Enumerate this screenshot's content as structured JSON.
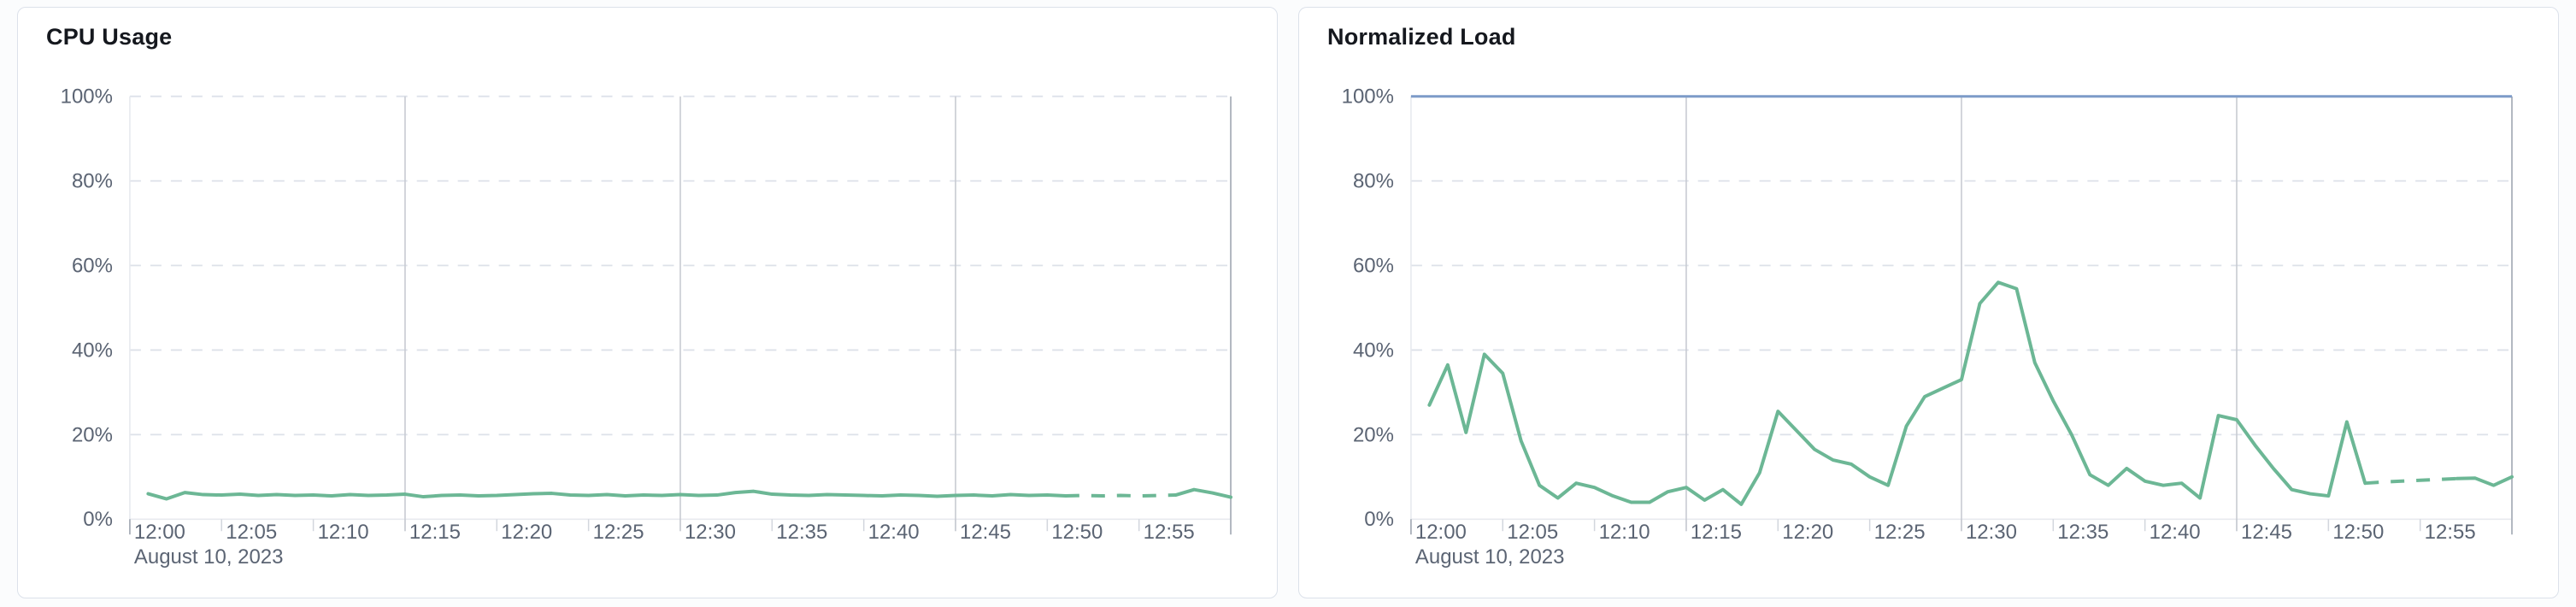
{
  "theme": {
    "page_background": "#fbfcfd",
    "card_background": "#ffffff",
    "card_border": "#dce1ea",
    "title_color": "#15181e",
    "axis_label_color": "#5b6473",
    "h_gridline_dashed_color": "#dde1e9",
    "baseline_color": "#e8eaef",
    "left_edge_line_color": "#e6e9ee",
    "minor_tick_color": "#d2d6dd",
    "major_gridline_color": "#c8cbd2",
    "right_edge_line_color": "#b2b7c0",
    "series_green": "#6cb795",
    "limit_blue": "#7d9bc8"
  },
  "chart_data": [
    {
      "type": "line",
      "title": "CPU Usage",
      "x_axis": {
        "date_label": "August 10, 2023",
        "tick_labels": [
          "12:00",
          "12:05",
          "12:10",
          "12:15",
          "12:20",
          "12:25",
          "12:30",
          "12:35",
          "12:40",
          "12:45",
          "12:50",
          "12:55"
        ],
        "range_start": "12:00",
        "range_end": "13:00",
        "major_gridline_times": [
          "12:15",
          "12:30",
          "12:45"
        ],
        "right_edge_time": "13:00"
      },
      "y_axis": {
        "tick_labels": [
          "0%",
          "20%",
          "40%",
          "60%",
          "80%",
          "100%"
        ],
        "ylim": [
          0,
          100
        ],
        "unit": "%",
        "grid_dashed": true
      },
      "limit_line": null,
      "series": [
        {
          "name": "cpu-usage",
          "color": "#6cb795",
          "times": [
            "12:01",
            "12:02",
            "12:03",
            "12:04",
            "12:05",
            "12:06",
            "12:07",
            "12:08",
            "12:09",
            "12:10",
            "12:11",
            "12:12",
            "12:13",
            "12:14",
            "12:15",
            "12:16",
            "12:17",
            "12:18",
            "12:19",
            "12:20",
            "12:21",
            "12:22",
            "12:23",
            "12:24",
            "12:25",
            "12:26",
            "12:27",
            "12:28",
            "12:29",
            "12:30",
            "12:31",
            "12:32",
            "12:33",
            "12:34",
            "12:35",
            "12:36",
            "12:37",
            "12:38",
            "12:39",
            "12:40",
            "12:41",
            "12:42",
            "12:43",
            "12:44",
            "12:45",
            "12:46",
            "12:47",
            "12:48",
            "12:49",
            "12:50",
            "12:51",
            "12:52",
            "12:53",
            "12:54",
            "12:55",
            "12:56",
            "12:57",
            "12:58",
            "12:59",
            "13:00"
          ],
          "values": [
            6.0,
            4.8,
            6.3,
            5.8,
            5.7,
            5.9,
            5.6,
            5.8,
            5.6,
            5.7,
            5.5,
            5.8,
            5.6,
            5.7,
            5.9,
            5.3,
            5.6,
            5.7,
            5.5,
            5.6,
            5.8,
            6.0,
            6.1,
            5.7,
            5.6,
            5.8,
            5.5,
            5.7,
            5.6,
            5.8,
            5.6,
            5.7,
            6.3,
            6.6,
            5.9,
            5.7,
            5.6,
            5.8,
            5.7,
            5.6,
            5.5,
            5.7,
            5.6,
            5.4,
            5.6,
            5.7,
            5.5,
            5.8,
            5.6,
            5.7,
            5.5,
            5.6,
            5.5,
            5.6,
            5.5,
            5.6,
            5.7,
            7.0,
            6.2,
            5.2
          ],
          "segments": [
            {
              "style": "solid",
              "from": 0,
              "to": 50
            },
            {
              "style": "dashed",
              "from": 50,
              "to": 56
            },
            {
              "style": "solid",
              "from": 56,
              "to": 59
            }
          ]
        }
      ]
    },
    {
      "type": "line",
      "title": "Normalized Load",
      "x_axis": {
        "date_label": "August 10, 2023",
        "tick_labels": [
          "12:00",
          "12:05",
          "12:10",
          "12:15",
          "12:20",
          "12:25",
          "12:30",
          "12:35",
          "12:40",
          "12:45",
          "12:50",
          "12:55"
        ],
        "range_start": "12:00",
        "range_end": "13:00",
        "major_gridline_times": [
          "12:15",
          "12:30",
          "12:45"
        ],
        "right_edge_time": "13:00"
      },
      "y_axis": {
        "tick_labels": [
          "0%",
          "20%",
          "40%",
          "60%",
          "80%",
          "100%"
        ],
        "ylim": [
          0,
          100
        ],
        "unit": "%",
        "grid_dashed": true
      },
      "limit_line": {
        "value": 100,
        "color": "#7d9bc8"
      },
      "series": [
        {
          "name": "normalized-load",
          "color": "#6cb795",
          "times": [
            "12:01",
            "12:02",
            "12:03",
            "12:04",
            "12:05",
            "12:06",
            "12:07",
            "12:08",
            "12:09",
            "12:10",
            "12:11",
            "12:12",
            "12:13",
            "12:14",
            "12:15",
            "12:16",
            "12:17",
            "12:18",
            "12:19",
            "12:20",
            "12:21",
            "12:22",
            "12:23",
            "12:24",
            "12:25",
            "12:26",
            "12:27",
            "12:28",
            "12:29",
            "12:30",
            "12:31",
            "12:32",
            "12:33",
            "12:34",
            "12:35",
            "12:36",
            "12:37",
            "12:38",
            "12:39",
            "12:40",
            "12:41",
            "12:42",
            "12:43",
            "12:44",
            "12:45",
            "12:46",
            "12:47",
            "12:48",
            "12:49",
            "12:50",
            "12:51",
            "12:52",
            "12:53",
            "12:54",
            "12:55",
            "12:56",
            "12:57",
            "12:58",
            "12:59",
            "13:00"
          ],
          "values": [
            27.0,
            36.5,
            20.5,
            39.0,
            34.5,
            18.5,
            8.0,
            5.0,
            8.5,
            7.5,
            5.5,
            4.0,
            4.0,
            6.5,
            7.5,
            4.5,
            7.0,
            3.5,
            11.0,
            25.5,
            21.0,
            16.5,
            14.0,
            13.0,
            10.0,
            8.0,
            22.0,
            29.0,
            31.0,
            33.0,
            51.0,
            56.0,
            54.5,
            37.0,
            28.0,
            20.0,
            10.5,
            8.0,
            12.0,
            9.0,
            8.0,
            8.5,
            5.0,
            24.5,
            23.5,
            17.5,
            12.0,
            7.0,
            6.0,
            5.5,
            23.0,
            8.5,
            8.8,
            9.0,
            9.2,
            9.4,
            9.6,
            9.7,
            8.0,
            10.0
          ],
          "segments": [
            {
              "style": "solid",
              "from": 0,
              "to": 51
            },
            {
              "style": "dashed",
              "from": 51,
              "to": 56
            },
            {
              "style": "solid",
              "from": 56,
              "to": 59
            }
          ]
        }
      ]
    }
  ]
}
